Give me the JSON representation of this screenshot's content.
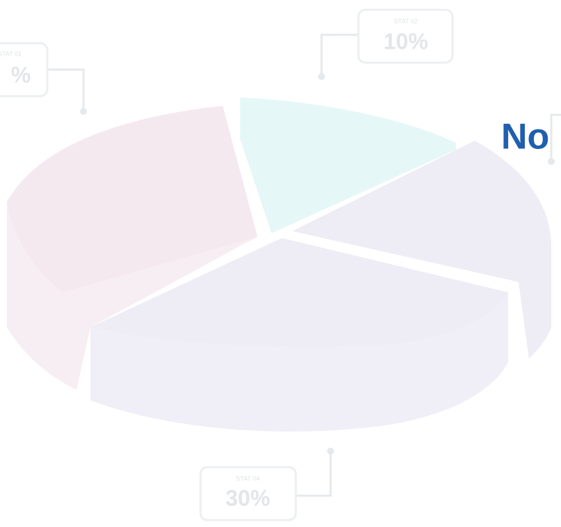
{
  "callouts": [
    {
      "label": "STAT 01",
      "value": "%"
    },
    {
      "label": "STAT 02",
      "value": "10%"
    },
    {
      "label": "STAT 04",
      "value": "30%"
    }
  ],
  "heading": "No"
}
